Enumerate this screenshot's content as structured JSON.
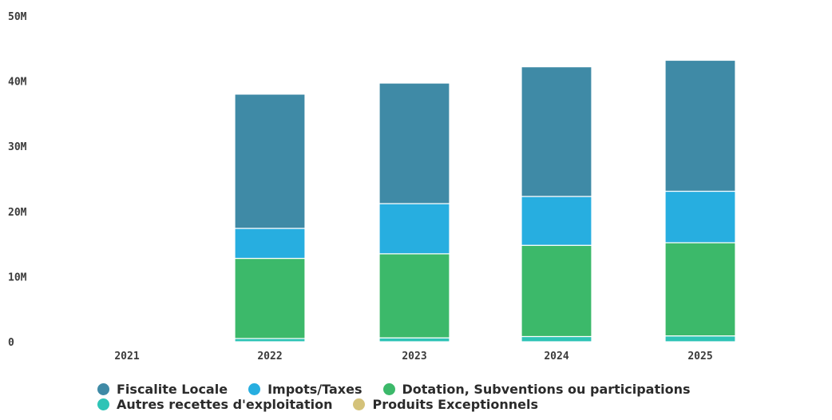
{
  "chart_data": {
    "type": "bar",
    "stacked": true,
    "categories": [
      "2021",
      "2022",
      "2023",
      "2024",
      "2025"
    ],
    "y_ticks": [
      "0",
      "10M",
      "20M",
      "30M",
      "40M",
      "50M"
    ],
    "ylim": [
      0,
      50000000
    ],
    "grid": false,
    "legend_position": "bottom",
    "series": [
      {
        "name": "Autres recettes d'exploitation",
        "color": "#2ec4b6",
        "values": [
          0,
          500000,
          600000,
          800000,
          900000
        ]
      },
      {
        "name": "Dotation, Subventions ou participations",
        "color": "#3cb96a",
        "values": [
          0,
          12300000,
          12900000,
          14000000,
          14300000
        ]
      },
      {
        "name": "Impots/Taxes",
        "color": "#27aee0",
        "values": [
          0,
          4600000,
          7700000,
          7500000,
          7900000
        ]
      },
      {
        "name": "Fiscalite Locale",
        "color": "#3f8aa6",
        "values": [
          0,
          20600000,
          18500000,
          19900000,
          20100000
        ]
      },
      {
        "name": "Produits Exceptionnels",
        "color": "#d4c27a",
        "values": [
          0,
          0,
          0,
          0,
          0
        ]
      }
    ],
    "legend": [
      [
        {
          "name": "Fiscalite Locale",
          "color": "#3f8aa6"
        },
        {
          "name": "Impots/Taxes",
          "color": "#27aee0"
        },
        {
          "name": "Dotation, Subventions ou participations",
          "color": "#3cb96a"
        }
      ],
      [
        {
          "name": "Autres recettes d'exploitation",
          "color": "#2ec4b6"
        },
        {
          "name": "Produits Exceptionnels",
          "color": "#d4c27a"
        }
      ]
    ]
  }
}
